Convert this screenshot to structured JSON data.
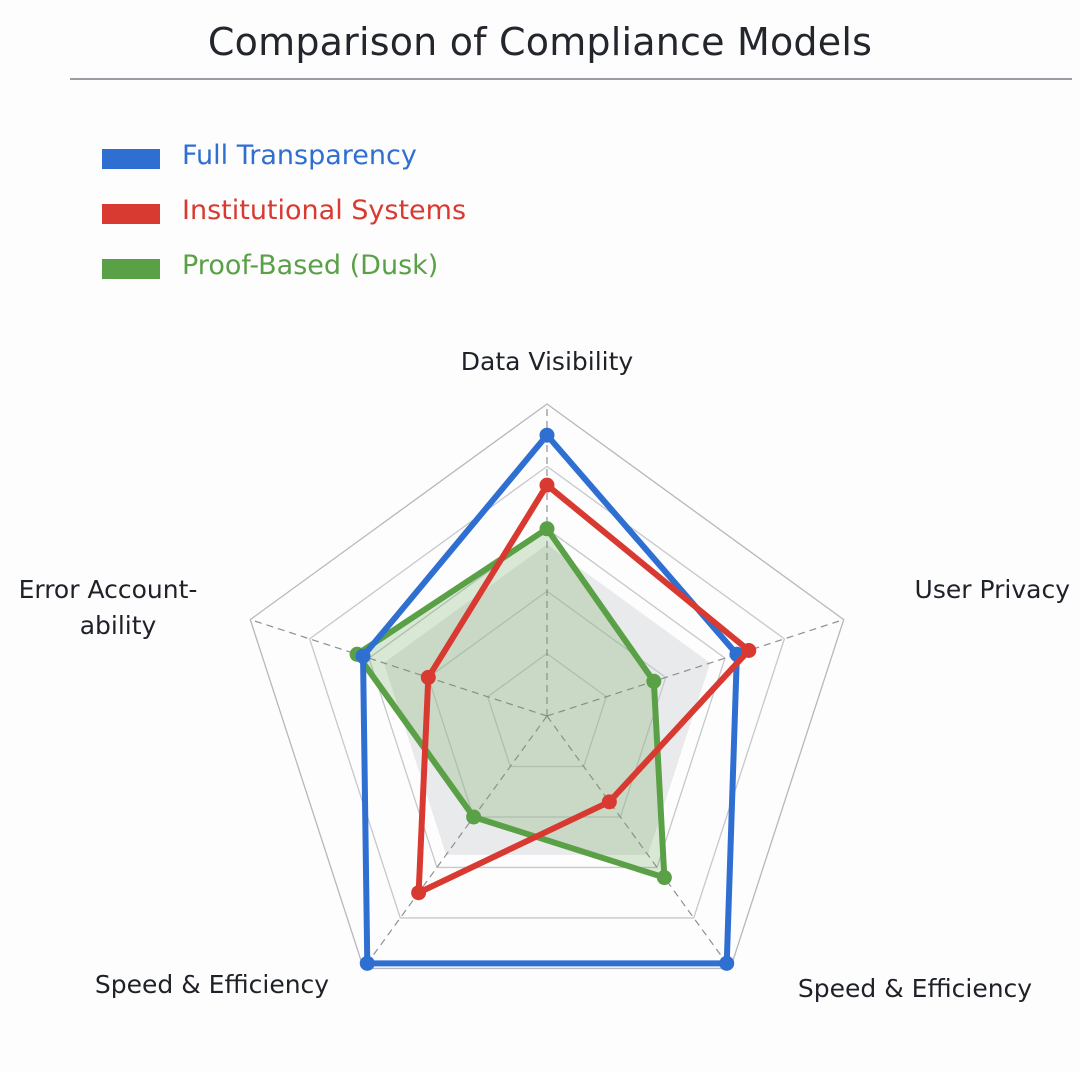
{
  "chart_data": {
    "type": "radar",
    "title": "Comparison of Compliance Models",
    "axes": [
      "Data Visibility",
      "User Privacy",
      "Speed & Efficiency",
      "Speed & Efficiency",
      "Error Account-\nability"
    ],
    "rmax": 5,
    "grid_levels": 5,
    "series": [
      {
        "name": "Full Transparency",
        "color": "#2f6fd1",
        "values": [
          4.5,
          3.2,
          4.9,
          4.9,
          3.1
        ],
        "fill": false
      },
      {
        "name": "Institutional Systems",
        "color": "#d83a31",
        "values": [
          3.7,
          3.4,
          1.7,
          3.5,
          2.0
        ],
        "fill": false
      },
      {
        "name": "Proof-Based (Dusk)",
        "color": "#5aa046",
        "values": [
          3.0,
          1.8,
          3.2,
          2.0,
          3.2
        ],
        "fill": true
      }
    ]
  }
}
